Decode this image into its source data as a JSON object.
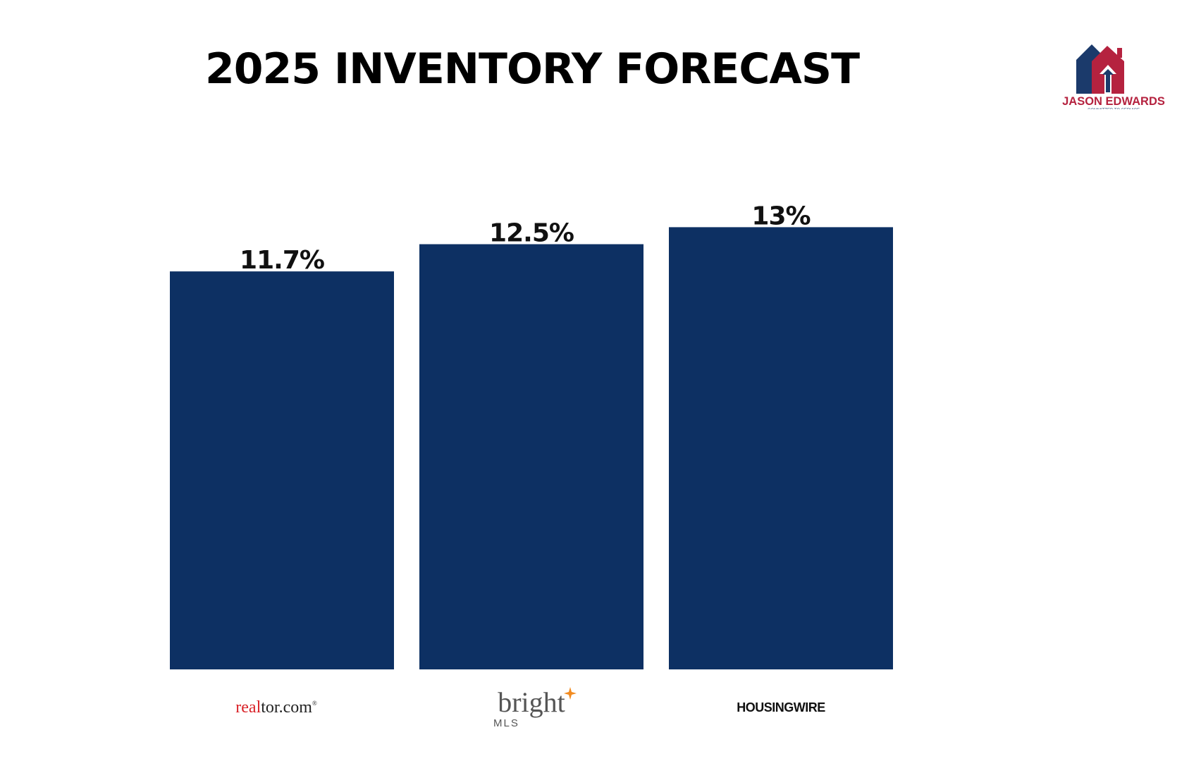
{
  "chart_data": {
    "type": "bar",
    "title": "2025 INVENTORY FORECAST",
    "categories": [
      "realtor.com",
      "bright MLS",
      "HOUSINGWIRE"
    ],
    "values": [
      11.7,
      12.5,
      13
    ],
    "value_labels": [
      "11.7%",
      "12.5%",
      "13%"
    ],
    "value_unit": "%",
    "ylim": [
      0,
      14.5
    ],
    "grid": false,
    "legend": "none",
    "bar_color": "#0d3063",
    "xlabel": "",
    "ylabel": ""
  },
  "logos": {
    "realtor": {
      "part1": "real",
      "part2": "tor.com",
      "mark": "®",
      "color1": "#d92228",
      "color2": "#222222"
    },
    "bright": {
      "word": "bright",
      "sub": "MLS",
      "color": "#555555",
      "spark_color": "#f28b20"
    },
    "housingwire": {
      "word": "HOUSINGWIRE",
      "color": "#111111"
    }
  },
  "brand": {
    "name": "JASON EDWARDS",
    "tagline": "COMMITTED TO SERVICE",
    "color_primary": "#b5223f",
    "color_secondary": "#1b3a6b"
  }
}
